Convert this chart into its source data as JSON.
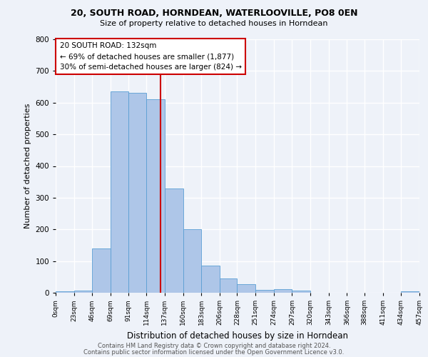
{
  "title_line1": "20, SOUTH ROAD, HORNDEAN, WATERLOOVILLE, PO8 0EN",
  "title_line2": "Size of property relative to detached houses in Horndean",
  "xlabel": "Distribution of detached houses by size in Horndean",
  "ylabel": "Number of detached properties",
  "bin_edges": [
    0,
    23,
    46,
    69,
    91,
    114,
    137,
    160,
    183,
    206,
    228,
    251,
    274,
    297,
    320,
    343,
    366,
    388,
    411,
    434,
    457
  ],
  "bar_heights": [
    5,
    7,
    140,
    635,
    630,
    610,
    330,
    200,
    85,
    45,
    27,
    10,
    12,
    6,
    0,
    0,
    0,
    0,
    0,
    5
  ],
  "bar_color": "#aec6e8",
  "bar_edge_color": "#5a9fd4",
  "vline_x": 132,
  "vline_color": "#cc0000",
  "annotation_line1": "20 SOUTH ROAD: 132sqm",
  "annotation_line2": "← 69% of detached houses are smaller (1,877)",
  "annotation_line3": "30% of semi-detached houses are larger (824) →",
  "annotation_box_color": "white",
  "annotation_box_edge": "#cc0000",
  "annotation_fontsize": 7.5,
  "background_color": "#eef2f9",
  "grid_color": "white",
  "footer_line1": "Contains HM Land Registry data © Crown copyright and database right 2024.",
  "footer_line2": "Contains public sector information licensed under the Open Government Licence v3.0.",
  "ylim": [
    0,
    800
  ],
  "yticks": [
    0,
    100,
    200,
    300,
    400,
    500,
    600,
    700,
    800
  ]
}
